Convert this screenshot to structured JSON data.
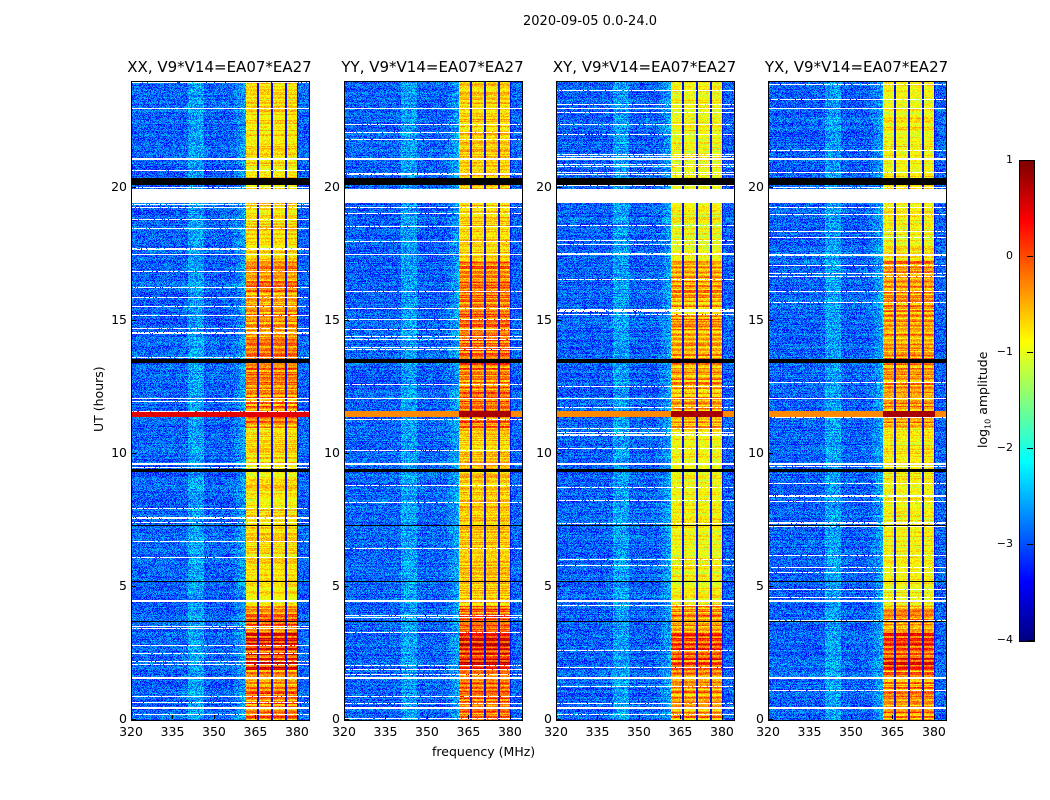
{
  "chart_data": {
    "type": "heatmap",
    "title": "2020-09-05 0.0-24.0",
    "xlabel": "frequency (MHz)",
    "ylabel": "UT (hours)",
    "xlim": [
      320,
      384
    ],
    "ylim": [
      0,
      24
    ],
    "xticks": [
      320,
      335,
      350,
      365,
      380
    ],
    "yticks": [
      0,
      5,
      10,
      15,
      20
    ],
    "panels": [
      {
        "title": "XX, V9*V14=EA07*EA27",
        "band_gain": 0.15
      },
      {
        "title": "YY, V9*V14=EA07*EA27",
        "band_gain": 0.25
      },
      {
        "title": "XY, V9*V14=EA07*EA27",
        "band_gain": 0.0
      },
      {
        "title": "YX, V9*V14=EA07*EA27",
        "band_gain": 0.05
      }
    ],
    "colorbar": {
      "label": "log10 amplitude",
      "label_main": "log",
      "label_sub": "10",
      "label_rest": " amplitude",
      "range": [
        -4,
        1
      ],
      "ticks": [
        "1",
        "0",
        "−1",
        "−2",
        "−3",
        "−4"
      ],
      "colormap": "jet"
    },
    "background_level": -2.9,
    "rfi_band_mhz": [
      361,
      380
    ],
    "band_level": -0.9,
    "subband_edges_mhz": [
      365.5,
      370.5,
      375.5,
      380
    ],
    "bright_time_ranges_hours": [
      [
        0,
        4.3,
        0.7
      ],
      [
        11.0,
        17.3,
        0.6
      ],
      [
        1.9,
        3.3,
        0.5
      ]
    ],
    "white_gaps_hours": [
      [
        19.45,
        20.0
      ],
      [
        4.45,
        4.55
      ],
      [
        1.55,
        1.65
      ],
      [
        9.6,
        9.7
      ],
      [
        0.45,
        0.5
      ],
      [
        17.5,
        17.55
      ],
      [
        21.1,
        21.15
      ],
      [
        23.0,
        23.05
      ],
      [
        12.1,
        12.15
      ]
    ],
    "black_gaps_hours": [
      [
        20.15,
        20.4
      ],
      [
        9.35,
        9.45
      ],
      [
        13.45,
        13.6
      ],
      [
        7.3,
        7.35
      ],
      [
        3.7,
        3.75
      ],
      [
        5.2,
        5.25
      ]
    ],
    "red_rows_hours": [
      [
        11.4,
        11.65
      ]
    ]
  }
}
